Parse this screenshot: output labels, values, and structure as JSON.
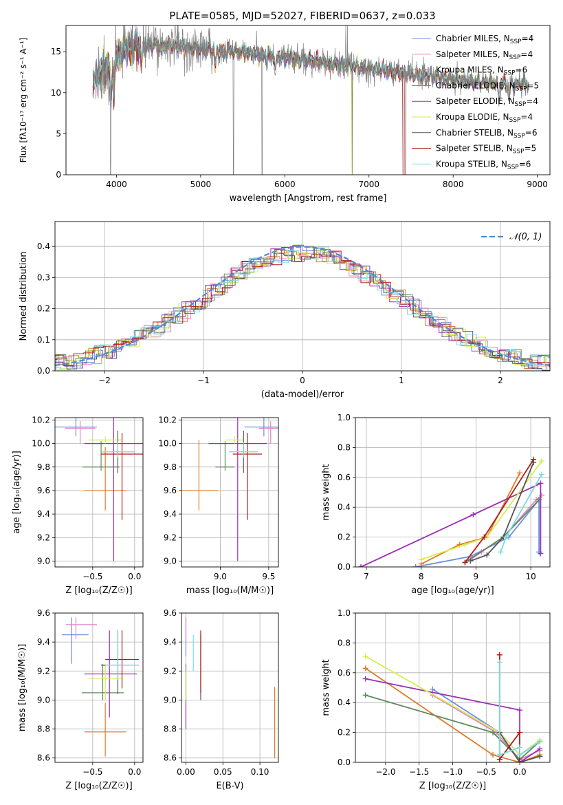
{
  "figure": {
    "title": "PLATE=0585, MJD=52027, FIBERID=0637, z=0.033"
  },
  "models": [
    {
      "name": "Chabrier MILES",
      "n_ssp": "4",
      "color": "#6a8fe0"
    },
    {
      "name": "Salpeter MILES",
      "n_ssp": "4",
      "color": "#e583c6"
    },
    {
      "name": "Kroupa MILES",
      "n_ssp": "6",
      "color": "#e07a25"
    },
    {
      "name": "Chabrier ELODIE",
      "n_ssp": "5",
      "color": "#5d8a5d"
    },
    {
      "name": "Salpeter ELODIE",
      "n_ssp": "4",
      "color": "#9b2fb3"
    },
    {
      "name": "Kroupa ELODIE",
      "n_ssp": "4",
      "color": "#d6ee4a"
    },
    {
      "name": "Chabrier STELIB",
      "n_ssp": "6",
      "color": "#555555"
    },
    {
      "name": "Salpeter STELIB",
      "n_ssp": "5",
      "color": "#b01a1a"
    },
    {
      "name": "Kroupa STELIB",
      "n_ssp": "6",
      "color": "#7adbe0"
    }
  ],
  "chart_data": [
    {
      "id": "spectrum",
      "type": "line",
      "xlabel": "wavelength [Angstrom, rest frame]",
      "ylabel": "Flux [fλ10⁻¹⁷ erg cm⁻² s⁻¹ A⁻¹]",
      "xlim": [
        3400,
        9150
      ],
      "ylim": [
        0,
        18.2
      ],
      "xticks": [
        4000,
        5000,
        6000,
        7000,
        8000,
        9000
      ],
      "yticks": [
        0,
        5,
        10,
        15
      ],
      "legend": "top-right",
      "data_color": "#808080",
      "continuum": [
        [
          3720,
          11.0
        ],
        [
          3800,
          12.5
        ],
        [
          3900,
          13.0
        ],
        [
          4000,
          14.0
        ],
        [
          4100,
          15.3
        ],
        [
          4300,
          15.7
        ],
        [
          4600,
          15.8
        ],
        [
          5000,
          15.3
        ],
        [
          5500,
          14.9
        ],
        [
          6000,
          14.3
        ],
        [
          6500,
          13.6
        ],
        [
          7000,
          13.0
        ],
        [
          7500,
          12.3
        ],
        [
          8000,
          11.6
        ],
        [
          8500,
          11.1
        ],
        [
          8900,
          11.0
        ]
      ],
      "absorption_features": [
        [
          3934,
          10.0
        ],
        [
          3969,
          9.0
        ],
        [
          4300,
          13.5
        ],
        [
          5175,
          13.0
        ],
        [
          5890,
          12.6
        ],
        [
          8542,
          9.5
        ],
        [
          8662,
          9.3
        ]
      ],
      "spikes_down": [
        [
          3930,
          0
        ],
        [
          5390,
          0
        ],
        [
          5730,
          0
        ],
        [
          6800,
          0
        ],
        [
          7420,
          0
        ]
      ],
      "spikes_up": [
        [
          6725,
          18.2
        ],
        [
          6745,
          18.2
        ]
      ]
    },
    {
      "id": "residuals",
      "type": "histogram",
      "xlabel": "(data-model)/error",
      "ylabel": "Normed distribution",
      "xlim": [
        -2.5,
        2.5
      ],
      "ylim": [
        0,
        0.48
      ],
      "xticks": [
        -2,
        -1,
        0,
        1,
        2
      ],
      "yticks": [
        0,
        0.1,
        0.2,
        0.3,
        0.4
      ],
      "bin_width": 0.1,
      "reference_label": "𝒩(0, 1)",
      "reference_color": "#4f88d6",
      "legend": "top-right"
    },
    {
      "id": "age_vs_Z",
      "type": "errorbar",
      "xlabel": "Z [log₁₀(Z/Z☉)]",
      "ylabel": "age  [log₁₀(age/yr)]",
      "xlim": [
        -0.95,
        0.1
      ],
      "ylim": [
        8.95,
        10.22
      ],
      "xticks": [
        -0.5,
        0.0
      ],
      "yticks": [
        9.0,
        9.2,
        9.4,
        9.6,
        9.8,
        10.0,
        10.2
      ],
      "points": [
        {
          "x": -0.7,
          "xerr": [
            0.25,
            0.25
          ],
          "y": 10.14,
          "yerr": [
            0.08,
            0.08
          ]
        },
        {
          "x": -0.65,
          "xerr": [
            0.18,
            0.18
          ],
          "y": 10.13,
          "yerr": [
            0.13,
            0.06
          ]
        },
        {
          "x": -0.35,
          "xerr": [
            0.25,
            0.25
          ],
          "y": 9.6,
          "yerr": [
            0.17,
            0.37
          ]
        },
        {
          "x": -0.4,
          "xerr": [
            0.22,
            0.22
          ],
          "y": 9.8,
          "yerr": [
            0.03,
            0.22
          ]
        },
        {
          "x": -0.25,
          "xerr": [
            0.35,
            0.35
          ],
          "y": 10.0,
          "yerr": [
            1.0,
            1.0
          ]
        },
        {
          "x": -0.35,
          "xerr": [
            0.2,
            0.2
          ],
          "y": 10.03,
          "yerr": [
            0.03,
            0.03
          ]
        },
        {
          "x": -0.2,
          "xerr": [
            0.2,
            0.2
          ],
          "y": 9.93,
          "yerr": [
            0.18,
            0.18
          ]
        },
        {
          "x": -0.15,
          "xerr": [
            0.25,
            0.25
          ],
          "y": 9.91,
          "yerr": [
            0.56,
            0.18
          ]
        },
        {
          "x": -0.2,
          "xerr": [
            0.2,
            0.2
          ],
          "y": 9.93,
          "yerr": [
            0.05,
            0.08
          ]
        }
      ]
    },
    {
      "id": "age_vs_mass",
      "type": "errorbar",
      "xlabel": "mass [log₁₀(M/M☉)]",
      "ylabel": "",
      "xlim": [
        8.6,
        9.6
      ],
      "ylim": [
        8.95,
        10.22
      ],
      "xticks": [
        9.0,
        9.5
      ],
      "yticks": [
        9.0,
        9.2,
        9.4,
        9.6,
        9.8,
        10.0,
        10.2
      ],
      "points": [
        {
          "x": 9.45,
          "xerr": [
            0.2,
            0.2
          ],
          "y": 10.14,
          "yerr": [
            0.08,
            0.08
          ]
        },
        {
          "x": 9.52,
          "xerr": [
            0.12,
            0.12
          ],
          "y": 10.13,
          "yerr": [
            0.13,
            0.06
          ]
        },
        {
          "x": 8.78,
          "xerr": [
            0.2,
            0.2
          ],
          "y": 9.6,
          "yerr": [
            0.17,
            0.43
          ]
        },
        {
          "x": 9.05,
          "xerr": [
            0.1,
            0.1
          ],
          "y": 9.8,
          "yerr": [
            0.03,
            0.22
          ]
        },
        {
          "x": 9.18,
          "xerr": [
            0.3,
            0.3
          ],
          "y": 10.0,
          "yerr": [
            1.0,
            1.0
          ]
        },
        {
          "x": 9.15,
          "xerr": [
            0.1,
            0.1
          ],
          "y": 10.03,
          "yerr": [
            0.03,
            0.03
          ]
        },
        {
          "x": 9.24,
          "xerr": [
            0.15,
            0.15
          ],
          "y": 9.93,
          "yerr": [
            0.18,
            0.18
          ]
        },
        {
          "x": 9.28,
          "xerr": [
            0.15,
            0.15
          ],
          "y": 9.91,
          "yerr": [
            0.56,
            0.18
          ]
        },
        {
          "x": 9.24,
          "xerr": [
            0.15,
            0.15
          ],
          "y": 9.93,
          "yerr": [
            0.05,
            0.08
          ]
        }
      ]
    },
    {
      "id": "weight_vs_age",
      "type": "line",
      "xlabel": "age  [log₁₀(age/yr)]",
      "ylabel": "mass weight",
      "xlim": [
        6.8,
        10.35
      ],
      "ylim": [
        0,
        1.0
      ],
      "xticks": [
        7,
        8,
        9,
        10
      ],
      "yticks": [
        0.0,
        0.2,
        0.4,
        0.6,
        0.8,
        1.0
      ],
      "series": [
        {
          "values": [
            [
              7.9,
              0.0
            ],
            [
              8.9,
              0.07
            ],
            [
              9.6,
              0.2
            ],
            [
              10.15,
              0.45
            ],
            [
              10.15,
              0.1
            ]
          ]
        },
        {
          "values": [
            [
              8.9,
              0.05
            ],
            [
              9.1,
              0.1
            ],
            [
              9.5,
              0.2
            ],
            [
              10.1,
              0.45
            ],
            [
              10.2,
              0.48
            ]
          ]
        },
        {
          "values": [
            [
              8.0,
              0.02
            ],
            [
              8.7,
              0.15
            ],
            [
              9.2,
              0.2
            ],
            [
              9.8,
              0.63
            ]
          ]
        },
        {
          "values": [
            [
              8.8,
              0.03
            ],
            [
              9.5,
              0.2
            ],
            [
              10.15,
              0.45
            ]
          ]
        },
        {
          "values": [
            [
              6.9,
              0.0
            ],
            [
              8.95,
              0.35
            ],
            [
              10.18,
              0.56
            ],
            [
              10.18,
              0.09
            ]
          ]
        },
        {
          "values": [
            [
              8.0,
              0.05
            ],
            [
              8.8,
              0.15
            ],
            [
              9.2,
              0.2
            ],
            [
              10.2,
              0.71
            ]
          ]
        },
        {
          "values": [
            [
              8.9,
              0.04
            ],
            [
              9.2,
              0.08
            ],
            [
              9.5,
              0.2
            ],
            [
              10.05,
              0.7
            ]
          ]
        },
        {
          "values": [
            [
              8.8,
              0.03
            ],
            [
              9.15,
              0.2
            ],
            [
              10.05,
              0.72
            ]
          ]
        },
        {
          "values": [
            [
              9.45,
              0.1
            ],
            [
              9.55,
              0.2
            ],
            [
              10.2,
              0.62
            ]
          ]
        }
      ]
    },
    {
      "id": "mass_vs_Z",
      "type": "errorbar",
      "xlabel": "Z [log₁₀(Z/Z☉)]",
      "ylabel": "mass [log₁₀(M/M☉)]",
      "xlim": [
        -0.95,
        0.1
      ],
      "ylim": [
        8.57,
        9.6
      ],
      "xticks": [
        -0.5,
        0.0
      ],
      "yticks": [
        8.6,
        8.8,
        9.0,
        9.2,
        9.4,
        9.6
      ],
      "points": [
        {
          "x": -0.75,
          "xerr": [
            0.12,
            0.2
          ],
          "y": 9.45,
          "yerr": [
            0.2,
            0.12
          ]
        },
        {
          "x": -0.7,
          "xerr": [
            0.12,
            0.25
          ],
          "y": 9.52,
          "yerr": [
            0.1,
            0.05
          ]
        },
        {
          "x": -0.35,
          "xerr": [
            0.25,
            0.25
          ],
          "y": 8.78,
          "yerr": [
            0.17,
            0.2
          ]
        },
        {
          "x": -0.38,
          "xerr": [
            0.25,
            0.25
          ],
          "y": 9.05,
          "yerr": [
            0.05,
            0.2
          ]
        },
        {
          "x": -0.3,
          "xerr": [
            0.3,
            0.33
          ],
          "y": 9.18,
          "yerr": [
            0.3,
            0.3
          ]
        },
        {
          "x": -0.35,
          "xerr": [
            0.2,
            0.2
          ],
          "y": 9.15,
          "yerr": [
            0.15,
            0.1
          ]
        },
        {
          "x": -0.2,
          "xerr": [
            0.2,
            0.25
          ],
          "y": 9.24,
          "yerr": [
            0.2,
            0.24
          ]
        },
        {
          "x": -0.15,
          "xerr": [
            0.2,
            0.2
          ],
          "y": 9.28,
          "yerr": [
            0.2,
            0.2
          ]
        },
        {
          "x": -0.2,
          "xerr": [
            0.15,
            0.25
          ],
          "y": 9.24,
          "yerr": [
            0.1,
            0.24
          ]
        }
      ]
    },
    {
      "id": "mass_vs_ebv",
      "type": "errorbar",
      "xlabel": "E(B-V)",
      "ylabel": "",
      "xlim": [
        -0.006,
        0.125
      ],
      "ylim": [
        8.57,
        9.6
      ],
      "xticks": [
        0.0,
        0.05,
        0.1
      ],
      "yticks": [
        8.6,
        8.8,
        9.0,
        9.2,
        9.4,
        9.6
      ],
      "points": [
        {
          "x": 0.0,
          "y": 9.45,
          "yerr": [
            0.15,
            0.12
          ]
        },
        {
          "x": 0.0,
          "y": 9.52,
          "yerr": [
            0.1,
            0.05
          ]
        },
        {
          "x": 0.12,
          "y": 8.85,
          "yerr": [
            0.25,
            0.24
          ]
        },
        {
          "x": 0.0,
          "y": 9.05,
          "yerr": [
            0.05,
            0.2
          ]
        },
        {
          "x": 0.0,
          "y": 9.0,
          "yerr": [
            0.2,
            0.2
          ]
        },
        {
          "x": 0.0,
          "y": 9.1,
          "yerr": [
            0.1,
            0.1
          ]
        },
        {
          "x": 0.02,
          "y": 9.2,
          "yerr": [
            0.2,
            0.25
          ]
        },
        {
          "x": 0.02,
          "y": 9.25,
          "yerr": [
            0.2,
            0.23
          ]
        },
        {
          "x": 0.01,
          "y": 9.3,
          "yerr": [
            0.1,
            0.15
          ]
        }
      ]
    },
    {
      "id": "weight_vs_Z",
      "type": "line",
      "xlabel": "Z [log₁₀(Z/Z☉)]",
      "ylabel": "mass weight",
      "xlim": [
        -2.45,
        0.45
      ],
      "ylim": [
        0,
        1.0
      ],
      "xticks": [
        -2.0,
        -1.5,
        -1.0,
        -0.5,
        0.0
      ],
      "yticks": [
        0.0,
        0.2,
        0.4,
        0.6,
        0.8,
        1.0
      ],
      "series": [
        {
          "values": [
            [
              -1.3,
              0.49
            ],
            [
              -0.3,
              0.2
            ],
            [
              0.0,
              0.05
            ],
            [
              0.3,
              0.14
            ]
          ]
        },
        {
          "values": [
            [
              -1.3,
              0.45
            ],
            [
              -0.35,
              0.2
            ],
            [
              0.0,
              0.02
            ],
            [
              0.3,
              0.08
            ]
          ]
        },
        {
          "values": [
            [
              -2.3,
              0.63
            ],
            [
              -0.4,
              0.05
            ],
            [
              0.0,
              0.0
            ],
            [
              0.3,
              0.05
            ]
          ]
        },
        {
          "values": [
            [
              -2.3,
              0.45
            ],
            [
              -0.4,
              0.2
            ],
            [
              0.0,
              0.02
            ],
            [
              0.3,
              0.14
            ]
          ]
        },
        {
          "values": [
            [
              -2.3,
              0.56
            ],
            [
              0.0,
              0.35
            ],
            [
              0.0,
              0.0
            ],
            [
              0.3,
              0.09
            ]
          ]
        },
        {
          "values": [
            [
              -2.3,
              0.71
            ],
            [
              -0.3,
              0.2
            ],
            [
              0.0,
              0.05
            ],
            [
              0.3,
              0.15
            ]
          ]
        },
        {
          "values": [
            [
              -0.3,
              0.2
            ],
            [
              0.0,
              0.0
            ],
            [
              0.3,
              0.04
            ]
          ]
        },
        {
          "values": [
            [
              -0.3,
              0.72
            ],
            [
              -0.3,
              0.02
            ],
            [
              0.0,
              0.2
            ],
            [
              0.0,
              0.0
            ]
          ]
        },
        {
          "values": [
            [
              -0.3,
              0.67
            ],
            [
              -0.3,
              0.05
            ],
            [
              0.0,
              0.1
            ],
            [
              0.0,
              0.05
            ],
            [
              0.3,
              0.14
            ]
          ]
        }
      ]
    }
  ]
}
